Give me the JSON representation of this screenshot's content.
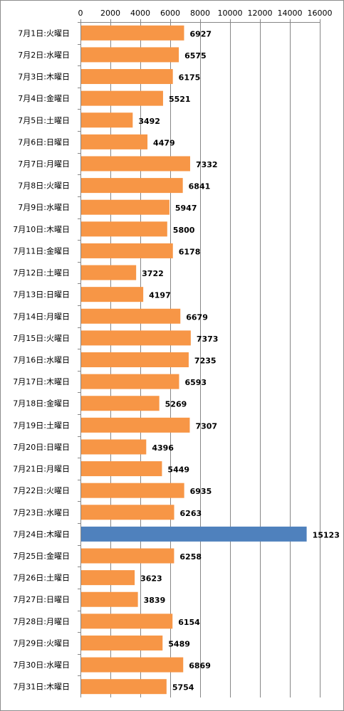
{
  "chart_data": {
    "type": "bar",
    "orientation": "horizontal",
    "xlim": [
      0,
      16000
    ],
    "x_ticks": [
      0,
      2000,
      4000,
      6000,
      8000,
      10000,
      12000,
      14000,
      16000
    ],
    "x_tick_labels": [
      "0",
      "2000",
      "4000",
      "6000",
      "8000",
      "10000",
      "12000",
      "14000",
      "16000"
    ],
    "x_axis_position": "top",
    "grid": "vertical",
    "legend": "none",
    "categories": [
      "7月1日:火曜日",
      "7月2日:水曜日",
      "7月3日:木曜日",
      "7月4日:金曜日",
      "7月5日:土曜日",
      "7月6日:日曜日",
      "7月7日:月曜日",
      "7月8日:火曜日",
      "7月9日:水曜日",
      "7月10日:木曜日",
      "7月11日:金曜日",
      "7月12日:土曜日",
      "7月13日:日曜日",
      "7月14日:月曜日",
      "7月15日:火曜日",
      "7月16日:水曜日",
      "7月17日:木曜日",
      "7月18日:金曜日",
      "7月19日:土曜日",
      "7月20日:日曜日",
      "7月21日:月曜日",
      "7月22日:火曜日",
      "7月23日:水曜日",
      "7月24日:木曜日",
      "7月25日:金曜日",
      "7月26日:土曜日",
      "7月27日:日曜日",
      "7月28日:月曜日",
      "7月29日:火曜日",
      "7月30日:水曜日",
      "7月31日:木曜日"
    ],
    "values": [
      6927,
      6575,
      6175,
      5521,
      3492,
      4479,
      7332,
      6841,
      5947,
      5800,
      6178,
      3722,
      4197,
      6679,
      7373,
      7235,
      6593,
      5269,
      7307,
      4396,
      5449,
      6935,
      6263,
      15123,
      6258,
      3623,
      3839,
      6154,
      5489,
      6869,
      5754
    ],
    "colors": {
      "default_bar": "#f79646",
      "highlight_bar": "#4f81bd",
      "gridline": "#878787",
      "axis": "#878787"
    },
    "highlight_index": 23
  }
}
